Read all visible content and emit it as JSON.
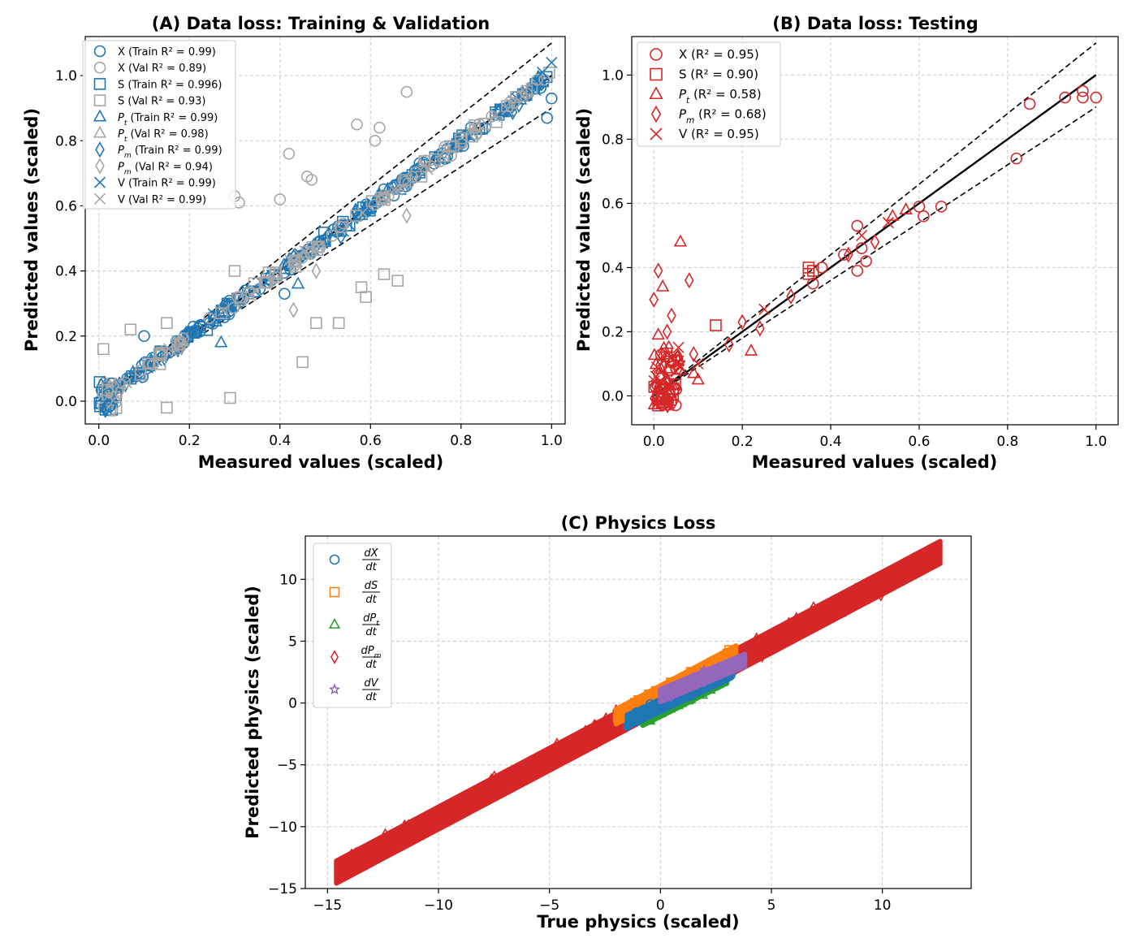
{
  "chart_data": [
    {
      "id": "A",
      "type": "scatter",
      "title": "(A) Data loss: Training & Validation",
      "xlabel": "Measured values (scaled)",
      "ylabel": "Predicted values (scaled)",
      "xlim": [
        -0.03,
        1.03
      ],
      "ylim": [
        -0.07,
        1.12
      ],
      "xticks": [
        "0.0",
        "0.2",
        "0.4",
        "0.6",
        "0.8",
        "1.0"
      ],
      "yticks": [
        "0.0",
        "0.2",
        "0.4",
        "0.6",
        "0.8",
        "1.0"
      ],
      "grid": true,
      "legend_position": "top-left",
      "colors": {
        "train": "#1f77b4",
        "val": "#a6a6a6"
      },
      "legend": [
        {
          "label": "X (Train R² = 0.99)",
          "marker": "circle",
          "color": "#1f77b4"
        },
        {
          "label": "X (Val R² = 0.89)",
          "marker": "circle",
          "color": "#a6a6a6"
        },
        {
          "label": "S (Train R² = 0.996)",
          "marker": "square",
          "color": "#1f77b4"
        },
        {
          "label": "S (Val R² = 0.93)",
          "marker": "square",
          "color": "#a6a6a6"
        },
        {
          "label": "Pt (Train R² = 0.99)",
          "marker": "triangle",
          "color": "#1f77b4"
        },
        {
          "label": "Pt (Val R² = 0.98)",
          "marker": "triangle",
          "color": "#a6a6a6"
        },
        {
          "label": "Pm (Train R² = 0.99)",
          "marker": "diamond",
          "color": "#1f77b4"
        },
        {
          "label": "Pm (Val R² = 0.94)",
          "marker": "diamond",
          "color": "#a6a6a6"
        },
        {
          "label": "V (Train R² = 0.99)",
          "marker": "x",
          "color": "#1f77b4"
        },
        {
          "label": "V (Val R² = 0.99)",
          "marker": "x",
          "color": "#a6a6a6"
        }
      ],
      "reference_lines": {
        "identity": [
          [
            0,
            0
          ],
          [
            1,
            1
          ]
        ],
        "band_upper": [
          [
            0,
            0
          ],
          [
            1,
            1.1
          ]
        ],
        "band_lower": [
          [
            0,
            0
          ],
          [
            1,
            0.9
          ]
        ]
      },
      "points": [
        {
          "m": "square",
          "c": "val",
          "x": 0.01,
          "y": 0.16
        },
        {
          "m": "square",
          "c": "val",
          "x": 0.07,
          "y": 0.22
        },
        {
          "m": "square",
          "c": "val",
          "x": 0.15,
          "y": -0.02
        },
        {
          "m": "square",
          "c": "val",
          "x": 0.15,
          "y": 0.24
        },
        {
          "m": "square",
          "c": "val",
          "x": 0.29,
          "y": 0.01
        },
        {
          "m": "square",
          "c": "val",
          "x": 0.3,
          "y": 0.4
        },
        {
          "m": "square",
          "c": "val",
          "x": 0.45,
          "y": 0.12
        },
        {
          "m": "square",
          "c": "val",
          "x": 0.48,
          "y": 0.24
        },
        {
          "m": "square",
          "c": "val",
          "x": 0.53,
          "y": 0.24
        },
        {
          "m": "square",
          "c": "val",
          "x": 0.58,
          "y": 0.35
        },
        {
          "m": "square",
          "c": "val",
          "x": 0.59,
          "y": 0.32
        },
        {
          "m": "square",
          "c": "val",
          "x": 0.63,
          "y": 0.39
        },
        {
          "m": "square",
          "c": "val",
          "x": 0.66,
          "y": 0.37
        },
        {
          "m": "circle",
          "c": "val",
          "x": 0.3,
          "y": 0.63
        },
        {
          "m": "circle",
          "c": "val",
          "x": 0.31,
          "y": 0.61
        },
        {
          "m": "circle",
          "c": "val",
          "x": 0.4,
          "y": 0.62
        },
        {
          "m": "circle",
          "c": "val",
          "x": 0.42,
          "y": 0.76
        },
        {
          "m": "circle",
          "c": "val",
          "x": 0.46,
          "y": 0.69
        },
        {
          "m": "circle",
          "c": "val",
          "x": 0.47,
          "y": 0.68
        },
        {
          "m": "circle",
          "c": "val",
          "x": 0.57,
          "y": 0.85
        },
        {
          "m": "circle",
          "c": "val",
          "x": 0.61,
          "y": 0.8
        },
        {
          "m": "circle",
          "c": "val",
          "x": 0.62,
          "y": 0.84
        },
        {
          "m": "circle",
          "c": "val",
          "x": 0.68,
          "y": 0.95
        },
        {
          "m": "circle",
          "c": "train",
          "x": 0.1,
          "y": 0.2
        },
        {
          "m": "circle",
          "c": "train",
          "x": 0.41,
          "y": 0.33
        },
        {
          "m": "diamond",
          "c": "val",
          "x": 0.43,
          "y": 0.28
        },
        {
          "m": "diamond",
          "c": "val",
          "x": 0.48,
          "y": 0.4
        },
        {
          "m": "diamond",
          "c": "val",
          "x": 0.68,
          "y": 0.57
        },
        {
          "m": "triangle",
          "c": "train",
          "x": 0.27,
          "y": 0.18
        },
        {
          "m": "triangle",
          "c": "train",
          "x": 0.44,
          "y": 0.36
        },
        {
          "m": "x",
          "c": "train",
          "x": 1.0,
          "y": 1.04
        },
        {
          "m": "x",
          "c": "train",
          "x": 0.98,
          "y": 1.01
        },
        {
          "m": "circle",
          "c": "train",
          "x": 1.0,
          "y": 0.93
        },
        {
          "m": "circle",
          "c": "train",
          "x": 0.99,
          "y": 0.87
        }
      ],
      "band_cloud": [
        {
          "m": "circle",
          "c": "train",
          "n": 120,
          "spread": 0.03
        },
        {
          "m": "square",
          "c": "train",
          "n": 60,
          "spread": 0.025
        },
        {
          "m": "diamond",
          "c": "train",
          "n": 50,
          "spread": 0.035
        },
        {
          "m": "triangle",
          "c": "train",
          "n": 30,
          "spread": 0.03
        },
        {
          "m": "x",
          "c": "train",
          "n": 30,
          "spread": 0.02
        },
        {
          "m": "circle",
          "c": "val",
          "n": 50,
          "spread": 0.03
        },
        {
          "m": "square",
          "c": "val",
          "n": 50,
          "spread": 0.03
        },
        {
          "m": "x",
          "c": "val",
          "n": 30,
          "spread": 0.02
        }
      ]
    },
    {
      "id": "B",
      "type": "scatter",
      "title": "(B) Data loss: Testing",
      "xlabel": "Measured values (scaled)",
      "ylabel": "Predicted values (scaled)",
      "xlim": [
        -0.05,
        1.05
      ],
      "ylim": [
        -0.09,
        1.12
      ],
      "xticks": [
        "0.0",
        "0.2",
        "0.4",
        "0.6",
        "0.8",
        "1.0"
      ],
      "yticks": [
        "0.0",
        "0.2",
        "0.4",
        "0.6",
        "0.8",
        "1.0"
      ],
      "grid": true,
      "legend_position": "top-left",
      "colors": {
        "test": "#d62728"
      },
      "legend": [
        {
          "label": "X (R² = 0.95)",
          "marker": "circle",
          "color": "#d62728"
        },
        {
          "label": "S (R² = 0.90)",
          "marker": "square",
          "color": "#d62728"
        },
        {
          "label": "Pt (R² = 0.58)",
          "marker": "triangle",
          "color": "#d62728"
        },
        {
          "label": "Pm (R² = 0.68)",
          "marker": "diamond",
          "color": "#d62728"
        },
        {
          "label": "V (R² = 0.95)",
          "marker": "x",
          "color": "#d62728"
        }
      ],
      "reference_lines": {
        "identity": [
          [
            0,
            0
          ],
          [
            1,
            1
          ]
        ],
        "band_upper": [
          [
            0,
            0
          ],
          [
            1,
            1.1
          ]
        ],
        "band_lower": [
          [
            0,
            0
          ],
          [
            1,
            0.9
          ]
        ]
      },
      "points": [
        {
          "m": "circle",
          "x": 0.82,
          "y": 0.74
        },
        {
          "m": "circle",
          "x": 0.85,
          "y": 0.91
        },
        {
          "m": "circle",
          "x": 0.93,
          "y": 0.93
        },
        {
          "m": "circle",
          "x": 0.97,
          "y": 0.95
        },
        {
          "m": "circle",
          "x": 0.97,
          "y": 0.93
        },
        {
          "m": "circle",
          "x": 1.0,
          "y": 0.93
        },
        {
          "m": "circle",
          "x": 0.6,
          "y": 0.59
        },
        {
          "m": "circle",
          "x": 0.61,
          "y": 0.56
        },
        {
          "m": "circle",
          "x": 0.65,
          "y": 0.59
        },
        {
          "m": "circle",
          "x": 0.46,
          "y": 0.53
        },
        {
          "m": "circle",
          "x": 0.46,
          "y": 0.39
        },
        {
          "m": "circle",
          "x": 0.47,
          "y": 0.46
        },
        {
          "m": "circle",
          "x": 0.48,
          "y": 0.42
        },
        {
          "m": "circle",
          "x": 0.43,
          "y": 0.44
        },
        {
          "m": "circle",
          "x": 0.36,
          "y": 0.35
        },
        {
          "m": "circle",
          "x": 0.38,
          "y": 0.4
        },
        {
          "m": "square",
          "x": 0.14,
          "y": 0.22
        },
        {
          "m": "square",
          "x": 0.35,
          "y": 0.4
        },
        {
          "m": "square",
          "x": 0.35,
          "y": 0.38
        },
        {
          "m": "square",
          "x": 0.36,
          "y": 0.39
        },
        {
          "m": "square",
          "x": 0.01,
          "y": -0.03
        },
        {
          "m": "square",
          "x": 0.02,
          "y": -0.02
        },
        {
          "m": "square",
          "x": 0.03,
          "y": -0.02
        },
        {
          "m": "square",
          "x": 0.01,
          "y": 0.0
        },
        {
          "m": "triangle",
          "x": 0.06,
          "y": 0.48
        },
        {
          "m": "triangle",
          "x": 0.02,
          "y": 0.34
        },
        {
          "m": "triangle",
          "x": 0.01,
          "y": 0.19
        },
        {
          "m": "triangle",
          "x": 0.03,
          "y": 0.12
        },
        {
          "m": "triangle",
          "x": 0.1,
          "y": 0.05
        },
        {
          "m": "triangle",
          "x": 0.22,
          "y": 0.14
        },
        {
          "m": "triangle",
          "x": 0.54,
          "y": 0.56
        },
        {
          "m": "triangle",
          "x": 0.57,
          "y": 0.58
        },
        {
          "m": "triangle",
          "x": 0.06,
          "y": 0.08
        },
        {
          "m": "triangle",
          "x": 0.09,
          "y": 0.07
        },
        {
          "m": "diamond",
          "x": 0.01,
          "y": 0.39
        },
        {
          "m": "diamond",
          "x": 0.0,
          "y": 0.3
        },
        {
          "m": "diamond",
          "x": 0.08,
          "y": 0.36
        },
        {
          "m": "diamond",
          "x": 0.04,
          "y": 0.25
        },
        {
          "m": "diamond",
          "x": 0.03,
          "y": 0.2
        },
        {
          "m": "diamond",
          "x": 0.2,
          "y": 0.23
        },
        {
          "m": "diamond",
          "x": 0.24,
          "y": 0.21
        },
        {
          "m": "diamond",
          "x": 0.44,
          "y": 0.44
        },
        {
          "m": "diamond",
          "x": 0.5,
          "y": 0.48
        },
        {
          "m": "diamond",
          "x": 0.31,
          "y": 0.31
        },
        {
          "m": "diamond",
          "x": 0.17,
          "y": 0.16
        },
        {
          "m": "diamond",
          "x": 0.09,
          "y": 0.13
        },
        {
          "m": "x",
          "x": 0.25,
          "y": 0.27
        },
        {
          "m": "x",
          "x": 0.53,
          "y": 0.54
        },
        {
          "m": "x",
          "x": 0.47,
          "y": 0.5
        },
        {
          "m": "x",
          "x": 0.1,
          "y": 0.1
        }
      ],
      "low_cluster": {
        "n": 70,
        "xmax": 0.06,
        "ymin": -0.03,
        "ymax": 0.17
      }
    },
    {
      "id": "C",
      "type": "scatter",
      "title": "(C) Physics Loss",
      "xlabel": "True physics (scaled)",
      "ylabel": "Predicted physics (scaled)",
      "xlim": [
        -16,
        14
      ],
      "ylim": [
        -15,
        13.5
      ],
      "xticks": [
        -15,
        -10,
        -5,
        0,
        5,
        10
      ],
      "xtick_labels": [
        "−15",
        "−10",
        "−5",
        "0",
        "5",
        "10"
      ],
      "yticks": [
        -15,
        -10,
        -5,
        0,
        5,
        10
      ],
      "ytick_labels": [
        "−15",
        "−10",
        "−5",
        "0",
        "5",
        "10"
      ],
      "grid": true,
      "legend_position": "top-left",
      "legend": [
        {
          "num": "dX",
          "den": "dt",
          "marker": "circle",
          "color": "#1f77b4"
        },
        {
          "num": "dS",
          "den": "dt",
          "marker": "square",
          "color": "#ff7f0e"
        },
        {
          "num": "dPt",
          "den": "dt",
          "marker": "triangle",
          "color": "#2ca02c"
        },
        {
          "num": "dPm",
          "den": "dt",
          "marker": "diamond",
          "color": "#d62728"
        },
        {
          "num": "dV",
          "den": "dt",
          "marker": "star",
          "color": "#9467bd"
        }
      ],
      "series": [
        {
          "name": "dX/dt",
          "color": "#1f77b4",
          "x_range": [
            -1.5,
            3.2
          ],
          "slope": 0.85,
          "offset": -0.2,
          "width": 0.5
        },
        {
          "name": "dS/dt",
          "color": "#ff7f0e",
          "x_range": [
            -2.0,
            3.4
          ],
          "slope": 0.95,
          "offset": 0.8,
          "width": 0.6
        },
        {
          "name": "dPt/dt",
          "color": "#2ca02c",
          "x_range": [
            -0.8,
            3.0
          ],
          "slope": 0.9,
          "offset": -0.6,
          "width": 0.5
        },
        {
          "name": "dPm/dt",
          "color": "#d62728",
          "x_range": [
            -14.6,
            12.6
          ],
          "slope": 0.95,
          "offset": 0.2,
          "width": 0.9
        },
        {
          "name": "dV/dt",
          "color": "#9467bd",
          "x_range": [
            0.0,
            3.8
          ],
          "slope": 0.75,
          "offset": 0.6,
          "width": 0.5
        }
      ]
    }
  ]
}
